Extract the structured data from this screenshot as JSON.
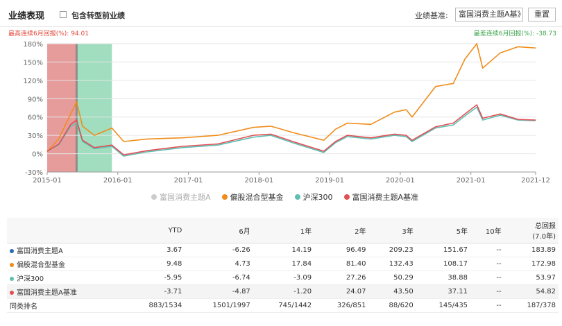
{
  "header": {
    "title": "业绩表现",
    "include_label": "包含转型前业绩",
    "benchmark_label": "业绩基准:",
    "benchmark_value": "富国消费主题A基》",
    "reset_label": "重置"
  },
  "stats": {
    "best_6m": "最高连续6月回报(%): 94.01",
    "worst_6m": "最差连续6月回报(%): -38.73"
  },
  "chart_data": {
    "type": "line",
    "x_ticks": [
      "2015-01",
      "2016-01",
      "2017-01",
      "2018-01",
      "2019-01",
      "2020-01",
      "2021-01",
      "2021-12"
    ],
    "y_ticks": [
      "180%",
      "150%",
      "120%",
      "90%",
      "60%",
      "30%",
      "0%",
      "-30%"
    ],
    "ylim": [
      -30,
      180
    ],
    "x_range": [
      "2015-01",
      "2021-12"
    ],
    "grid": true,
    "legend_position": "bottom",
    "highlight_best": {
      "start": "2015-01",
      "end": "2015-06",
      "color": "#e38b8b"
    },
    "highlight_worst": {
      "start": "2015-06",
      "end": "2015-12",
      "color": "#8fd8b4"
    },
    "series": [
      {
        "name": "富国消费主题A",
        "color": "#cccccc",
        "x": [],
        "y": []
      },
      {
        "name": "偏股混合型基金",
        "color": "#f08c1a",
        "x": [
          "2015-01",
          "2015-03",
          "2015-05",
          "2015-06",
          "2015-07",
          "2015-09",
          "2015-12",
          "2016-02",
          "2016-06",
          "2016-12",
          "2017-06",
          "2017-12",
          "2018-03",
          "2018-07",
          "2018-12",
          "2019-02",
          "2019-04",
          "2019-08",
          "2019-12",
          "2020-02",
          "2020-03",
          "2020-07",
          "2020-10",
          "2020-12",
          "2021-02",
          "2021-03",
          "2021-06",
          "2021-09",
          "2021-12"
        ],
        "y": [
          3,
          25,
          65,
          85,
          45,
          30,
          42,
          20,
          24,
          26,
          30,
          43,
          45,
          34,
          22,
          40,
          50,
          48,
          68,
          72,
          60,
          110,
          115,
          155,
          180,
          140,
          165,
          175,
          173
        ]
      },
      {
        "name": "沪深300",
        "color": "#5ebfb4",
        "x": [
          "2015-01",
          "2015-03",
          "2015-05",
          "2015-06",
          "2015-07",
          "2015-09",
          "2015-12",
          "2016-02",
          "2016-06",
          "2016-12",
          "2017-06",
          "2017-12",
          "2018-03",
          "2018-07",
          "2018-12",
          "2019-02",
          "2019-04",
          "2019-08",
          "2019-12",
          "2020-02",
          "2020-03",
          "2020-07",
          "2020-10",
          "2020-12",
          "2021-02",
          "2021-03",
          "2021-06",
          "2021-09",
          "2021-12"
        ],
        "y": [
          4,
          15,
          45,
          50,
          20,
          8,
          12,
          -4,
          3,
          10,
          14,
          27,
          30,
          17,
          2,
          18,
          28,
          24,
          30,
          28,
          20,
          42,
          47,
          62,
          76,
          55,
          63,
          55,
          54
        ]
      },
      {
        "name": "富国消费主题A基准",
        "color": "#e05055",
        "x": [
          "2015-01",
          "2015-03",
          "2015-05",
          "2015-06",
          "2015-07",
          "2015-09",
          "2015-12",
          "2016-02",
          "2016-06",
          "2016-12",
          "2017-06",
          "2017-12",
          "2018-03",
          "2018-07",
          "2018-12",
          "2019-02",
          "2019-04",
          "2019-08",
          "2019-12",
          "2020-02",
          "2020-03",
          "2020-07",
          "2020-10",
          "2020-12",
          "2021-02",
          "2021-03",
          "2021-06",
          "2021-09",
          "2021-12"
        ],
        "y": [
          4,
          16,
          48,
          55,
          22,
          10,
          14,
          -2,
          5,
          12,
          16,
          30,
          32,
          19,
          4,
          20,
          30,
          26,
          32,
          30,
          22,
          44,
          50,
          65,
          80,
          58,
          65,
          56,
          55
        ]
      }
    ]
  },
  "table": {
    "headers": [
      "",
      "YTD",
      "6月",
      "1年",
      "2年",
      "3年",
      "5年",
      "10年",
      "总回报",
      "(7.0年)"
    ],
    "rows": [
      {
        "name": "富国消费主题A",
        "dot": "#2b6cb0",
        "values": [
          "3.67",
          "-6.26",
          "14.19",
          "96.49",
          "209.23",
          "151.67",
          "--",
          "183.89"
        ]
      },
      {
        "name": "偏股混合型基金",
        "dot": "#f08c1a",
        "values": [
          "9.48",
          "4.73",
          "17.84",
          "81.40",
          "132.43",
          "108.17",
          "--",
          "172.98"
        ]
      },
      {
        "name": "沪深300",
        "dot": "#5ebfb4",
        "values": [
          "-5.95",
          "-6.74",
          "-3.09",
          "27.26",
          "50.29",
          "38.88",
          "--",
          "53.97"
        ]
      },
      {
        "name": "富国消费主题A基准",
        "dot": "#e05055",
        "values": [
          "-3.71",
          "-4.87",
          "-1.20",
          "24.07",
          "43.50",
          "37.11",
          "--",
          "54.82"
        ]
      }
    ],
    "rank": {
      "name": "同类排名",
      "values": [
        "883/1534",
        "1501/1997",
        "745/1442",
        "326/851",
        "88/620",
        "145/435",
        "--",
        "187/378"
      ]
    }
  }
}
